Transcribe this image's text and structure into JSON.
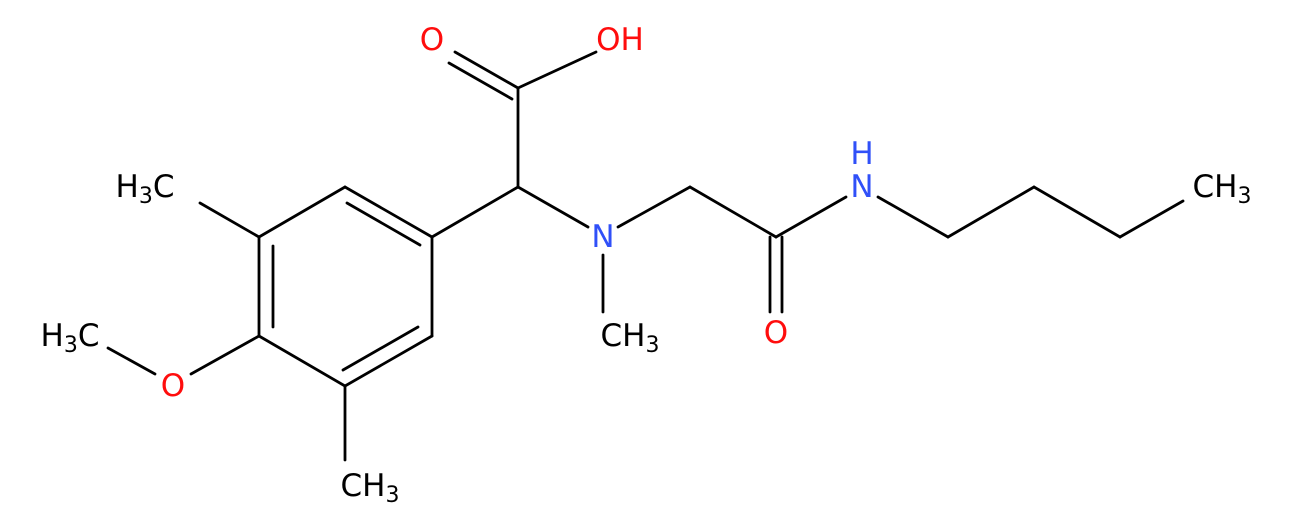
{
  "nodes": [
    {
      "parts": [
        "O"
      ]
    },
    {
      "parts": [
        "OH"
      ]
    },
    {
      "parts": [
        "H",
        "3",
        "C"
      ]
    },
    {
      "parts": [
        "N"
      ]
    },
    {
      "parts": [
        "CH",
        "3"
      ]
    },
    {
      "parts": [
        "H"
      ]
    },
    {
      "parts": [
        "N"
      ]
    },
    {
      "parts": [
        "CH",
        "3"
      ]
    },
    {
      "parts": [
        "O"
      ]
    },
    {
      "parts": [
        "H",
        "3",
        "C"
      ]
    },
    {
      "parts": [
        "O"
      ]
    },
    {
      "parts": [
        "CH",
        "3"
      ]
    }
  ]
}
